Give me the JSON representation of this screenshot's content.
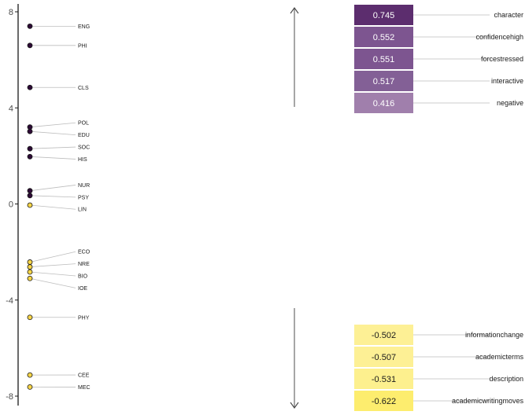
{
  "chart_data": {
    "type": "scatter",
    "title": "",
    "xlabel": "",
    "ylabel": "",
    "ylim": [
      -8.3,
      8.3
    ],
    "yticks": [
      8,
      4,
      0,
      -4,
      -8
    ],
    "ytick_labels": [
      "8",
      "4",
      "0",
      "-4",
      "-8"
    ],
    "points": [
      {
        "label": "ENG",
        "y": 7.4
      },
      {
        "label": "PHI",
        "y": 6.6
      },
      {
        "label": "CLS",
        "y": 4.85
      },
      {
        "label": "POL",
        "y": 3.2
      },
      {
        "label": "EDU",
        "y": 3.02
      },
      {
        "label": "SOC",
        "y": 2.3
      },
      {
        "label": "HIS",
        "y": 1.97
      },
      {
        "label": "NUR",
        "y": 0.55
      },
      {
        "label": "PSY",
        "y": 0.35
      },
      {
        "label": "LIN",
        "y": -0.05
      },
      {
        "label": "ECO",
        "y": -2.42
      },
      {
        "label": "NRE",
        "y": -2.62
      },
      {
        "label": "BIO",
        "y": -2.83
      },
      {
        "label": "IOE",
        "y": -3.1
      },
      {
        "label": "PHY",
        "y": -4.72
      },
      {
        "label": "CEE",
        "y": -7.12
      },
      {
        "label": "MEC",
        "y": -7.62
      }
    ],
    "positive_terms": [
      {
        "term": "character",
        "value": 0.745,
        "value_label": "0.745"
      },
      {
        "term": "confidencehigh",
        "value": 0.552,
        "value_label": "0.552"
      },
      {
        "term": "forcestressed",
        "value": 0.551,
        "value_label": "0.551"
      },
      {
        "term": "interactive",
        "value": 0.517,
        "value_label": "0.517"
      },
      {
        "term": "negative",
        "value": 0.416,
        "value_label": "0.416"
      }
    ],
    "negative_terms": [
      {
        "term": "informationchange",
        "value": -0.502,
        "value_label": "-0.502"
      },
      {
        "term": "academicterms",
        "value": -0.507,
        "value_label": "-0.507"
      },
      {
        "term": "description",
        "value": -0.531,
        "value_label": "-0.531"
      },
      {
        "term": "academicwritingmoves",
        "value": -0.622,
        "value_label": "-0.622"
      }
    ],
    "colors": {
      "dark_point": "#2d0a36",
      "light_point": "#f7d548",
      "axis": "#1a1a1a",
      "leader": "#bdbdbd",
      "arrow": "#4d4d4d"
    },
    "tile_colors": {
      "character": "#5c2d6e",
      "confidencehigh": "#7d5590",
      "forcestressed": "#7d5590",
      "interactive": "#836096",
      "negative": "#a07fac",
      "informationchange": "#fdf095",
      "academicterms": "#fdf095",
      "description": "#fdf08e",
      "academicwritingmoves": "#fded6e"
    }
  }
}
